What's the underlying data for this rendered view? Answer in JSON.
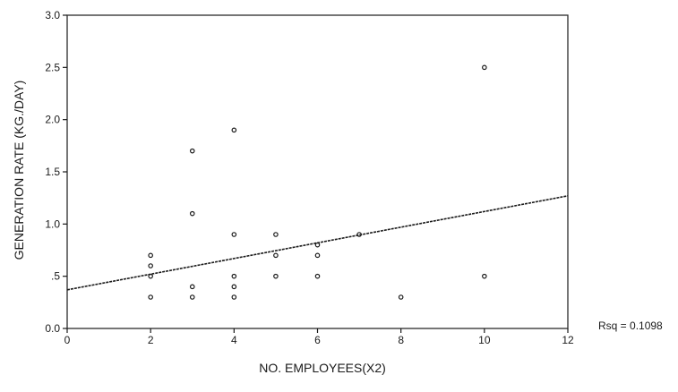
{
  "chart_data": {
    "type": "scatter",
    "title": "",
    "xlabel": "NO. EMPLOYEES(X2)",
    "ylabel": "GENERATION RATE (KG./DAY)",
    "xlim": [
      0,
      12
    ],
    "ylim": [
      0,
      3
    ],
    "x_ticks": [
      0,
      2,
      4,
      6,
      8,
      10,
      12
    ],
    "x_tick_labels": [
      "0",
      "2",
      "4",
      "6",
      "8",
      "10",
      "12"
    ],
    "y_ticks": [
      0,
      0.5,
      1.0,
      1.5,
      2.0,
      2.5,
      3.0
    ],
    "y_tick_labels": [
      "0.0",
      ".5",
      "1.0",
      "1.5",
      "2.0",
      "2.5",
      "3.0"
    ],
    "grid": false,
    "legend": null,
    "points": [
      {
        "x": 2,
        "y": 0.3
      },
      {
        "x": 2,
        "y": 0.5
      },
      {
        "x": 2,
        "y": 0.6
      },
      {
        "x": 2,
        "y": 0.7
      },
      {
        "x": 3,
        "y": 0.3
      },
      {
        "x": 3,
        "y": 0.4
      },
      {
        "x": 3,
        "y": 1.1
      },
      {
        "x": 3,
        "y": 1.7
      },
      {
        "x": 4,
        "y": 0.3
      },
      {
        "x": 4,
        "y": 0.4
      },
      {
        "x": 4,
        "y": 0.5
      },
      {
        "x": 4,
        "y": 0.9
      },
      {
        "x": 4,
        "y": 1.9
      },
      {
        "x": 5,
        "y": 0.5
      },
      {
        "x": 5,
        "y": 0.7
      },
      {
        "x": 5,
        "y": 0.9
      },
      {
        "x": 6,
        "y": 0.5
      },
      {
        "x": 6,
        "y": 0.7
      },
      {
        "x": 6,
        "y": 0.8
      },
      {
        "x": 7,
        "y": 0.9
      },
      {
        "x": 8,
        "y": 0.3
      },
      {
        "x": 10,
        "y": 0.5
      },
      {
        "x": 10,
        "y": 2.5
      }
    ],
    "fit_line": {
      "x": [
        0,
        12
      ],
      "y": [
        0.37,
        1.27
      ]
    },
    "annotation": "Rsq = 0.1098",
    "colors": {
      "ink": "#1a1a1a",
      "frame": "#2b2b2b",
      "background": "#ffffff"
    }
  }
}
